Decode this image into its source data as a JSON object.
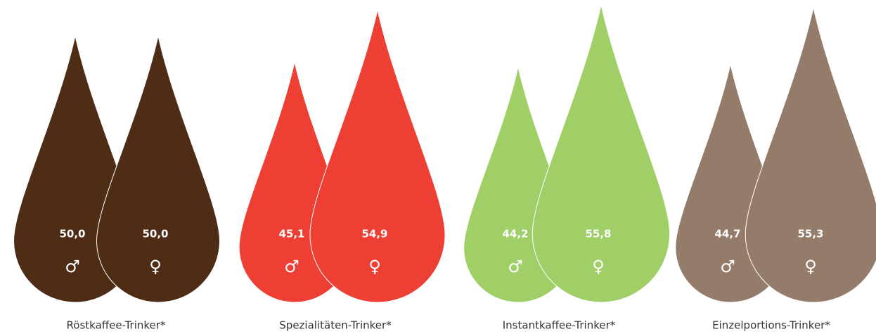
{
  "chart_data": {
    "type": "drop",
    "categories": [
      "Röstkaffee-Trinker*",
      "Spezialitäten-Trinker*",
      "Instantkaffee-Trinker*",
      "Einzelportions-Trinker*"
    ],
    "colors": [
      "#4e2c16",
      "#ee3f35",
      "#a0cf67",
      "#957b69"
    ],
    "series": [
      {
        "name": "♂",
        "values": [
          50.0,
          45.1,
          44.2,
          44.7
        ],
        "value_labels": [
          "50,0",
          "45,1",
          "44,2",
          "44,7"
        ]
      },
      {
        "name": "♀",
        "values": [
          50.0,
          54.9,
          55.8,
          55.3
        ],
        "value_labels": [
          "50,0",
          "54,9",
          "55,8",
          "55,3"
        ]
      }
    ]
  }
}
